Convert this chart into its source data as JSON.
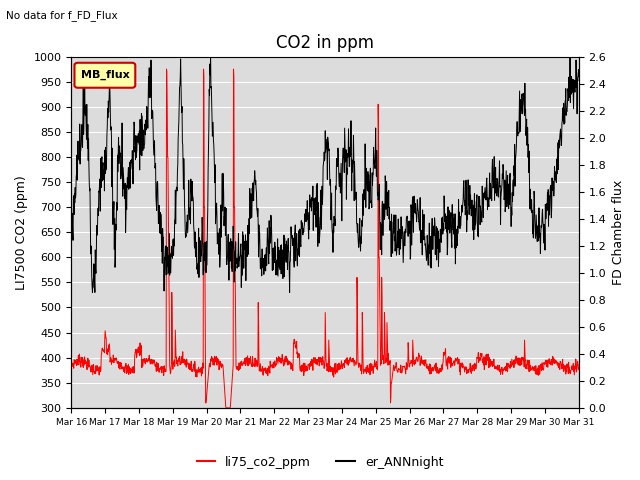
{
  "title": "CO2 in ppm",
  "no_data_text": "No data for f_FD_Flux",
  "ylabel_left": "LI7500 CO2 (ppm)",
  "ylabel_right": "FD Chamber flux",
  "ylim_left": [
    300,
    1000
  ],
  "ylim_right": [
    0.0,
    2.6
  ],
  "xtick_labels": [
    "Mar 16",
    "Mar 17",
    "Mar 18",
    "Mar 19",
    "Mar 20",
    "Mar 21",
    "Mar 22",
    "Mar 23",
    "Mar 24",
    "Mar 25",
    "Mar 26",
    "Mar 27",
    "Mar 28",
    "Mar 29",
    "Mar 30",
    "Mar 31"
  ],
  "bg_color": "#dcdcdc",
  "legend1_label": "MB_flux",
  "legend1_box_color": "#ffffaa",
  "legend1_border_color": "#cc0000",
  "line_red_label": "li75_co2_ppm",
  "line_black_label": "er_ANNnight",
  "line_red_color": "red",
  "line_black_color": "black",
  "title_fontsize": 12,
  "axis_fontsize": 9,
  "tick_fontsize": 8
}
